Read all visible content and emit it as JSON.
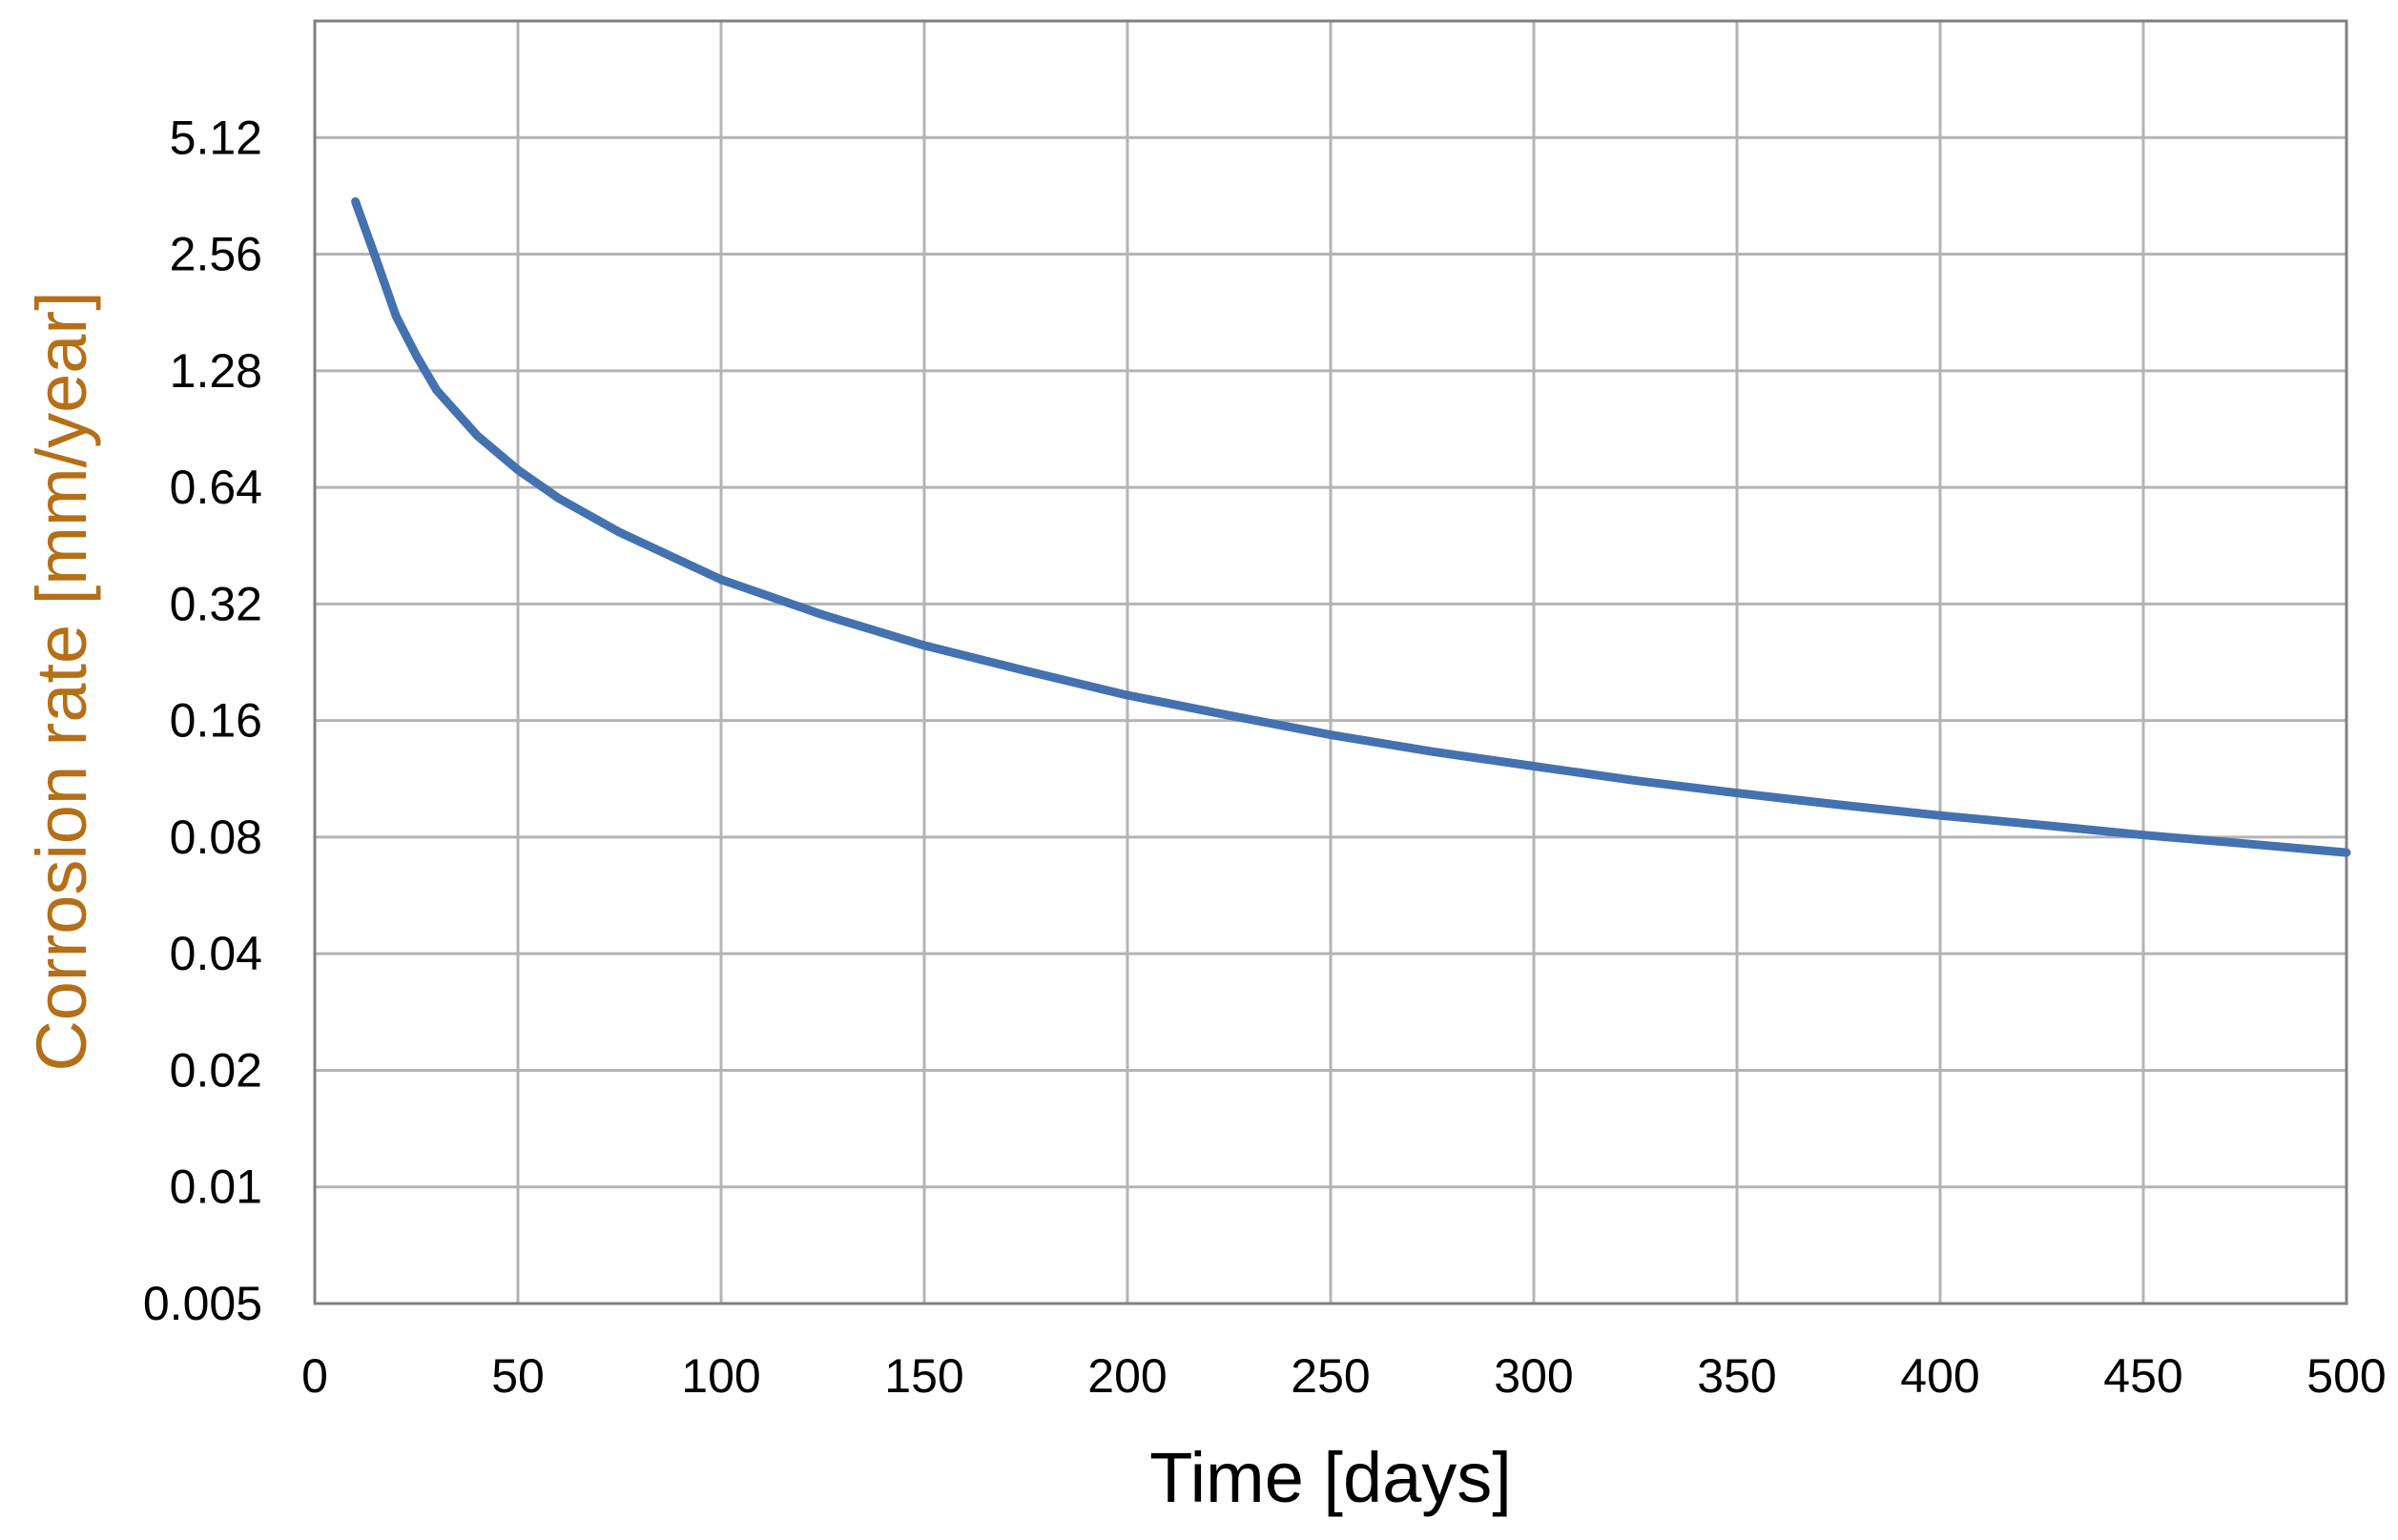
{
  "chart_data": {
    "type": "line",
    "title": "",
    "xlabel": "Time [days]",
    "ylabel": "Corrosion rate [mm/year]",
    "x_scale": "linear",
    "y_scale": "log2",
    "xlim": [
      0,
      500
    ],
    "ylim": [
      0.005,
      10.24
    ],
    "x_ticks": [
      "0",
      "50",
      "100",
      "150",
      "200",
      "250",
      "300",
      "350",
      "400",
      "450",
      "500"
    ],
    "y_ticks": [
      "0.005",
      "0.01",
      "0.02",
      "0.04",
      "0.08",
      "0.16",
      "0.32",
      "0.64",
      "1.28",
      "2.56",
      "5.12"
    ],
    "grid": true,
    "legend": "none",
    "colors": {
      "line": "#4472b0",
      "grid": "#b4b4b4",
      "frame": "#808080",
      "ylabel": "#b46f17",
      "xlabel": "#000000"
    },
    "series": [
      {
        "x": [
          10,
          15,
          20,
          25,
          30,
          40,
          50,
          60,
          75,
          100,
          125,
          150,
          175,
          200,
          225,
          250,
          275,
          300,
          325,
          350,
          375,
          400,
          425,
          450,
          475,
          500
        ],
        "values": [
          3.5,
          2.5,
          1.77,
          1.4,
          1.14,
          0.87,
          0.71,
          0.6,
          0.49,
          0.37,
          0.3,
          0.25,
          0.215,
          0.186,
          0.165,
          0.147,
          0.133,
          0.122,
          0.112,
          0.104,
          0.097,
          0.091,
          0.086,
          0.081,
          0.077,
          0.073
        ]
      }
    ]
  }
}
